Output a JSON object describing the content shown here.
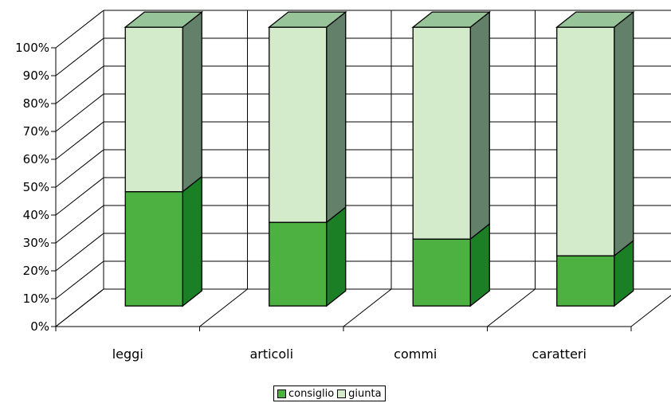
{
  "chart_data": {
    "type": "bar",
    "stacked": true,
    "percent": true,
    "three_d": true,
    "categories": [
      "leggi",
      "articoli",
      "commi",
      "caratteri"
    ],
    "series": [
      {
        "name": "consiglio",
        "values": [
          41,
          30,
          24,
          18
        ],
        "color": "#4cb140",
        "side_color": "#1b8025",
        "top_color": "#4cb140"
      },
      {
        "name": "giunta",
        "values": [
          59,
          70,
          76,
          82
        ],
        "color": "#d4ebcb",
        "side_color": "#63816a",
        "top_color": "#98c49a"
      }
    ],
    "y_ticks": [
      "0%",
      "10%",
      "20%",
      "30%",
      "40%",
      "50%",
      "60%",
      "70%",
      "80%",
      "90%",
      "100%"
    ],
    "ylim": [
      0,
      100
    ],
    "grid": true,
    "legend_position": "bottom"
  }
}
